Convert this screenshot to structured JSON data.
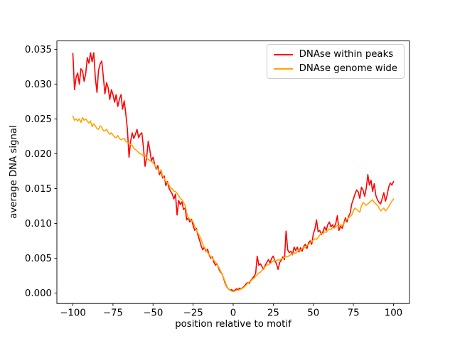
{
  "figure": {
    "background": "#ffffff",
    "xlabel": "position relative to motif",
    "ylabel": "average DNA signal"
  },
  "legend": {
    "position": "upper right",
    "items": [
      {
        "label": "DNAse within peaks",
        "color": "#ff0000"
      },
      {
        "label": "DNAse genome wide",
        "color": "#ffa500"
      }
    ]
  },
  "chart_data": {
    "type": "line",
    "title": "",
    "xlabel": "position relative to motif",
    "ylabel": "average DNA signal",
    "xlim": [
      -110,
      110
    ],
    "ylim": [
      -0.0015,
      0.0362
    ],
    "grid": false,
    "legend_position": "upper right",
    "xticks": {
      "values": [
        -100,
        -75,
        -50,
        -25,
        0,
        25,
        50,
        75,
        100
      ],
      "labels": [
        "−100",
        "−75",
        "−50",
        "−25",
        "0",
        "25",
        "50",
        "75",
        "100"
      ]
    },
    "yticks": {
      "values": [
        0.0,
        0.005,
        0.01,
        0.015,
        0.02,
        0.025,
        0.03,
        0.035
      ],
      "labels": [
        "0.000",
        "0.005",
        "0.010",
        "0.015",
        "0.020",
        "0.025",
        "0.030",
        "0.035"
      ]
    },
    "x_start": -100,
    "x_step": 1,
    "series": [
      {
        "name": "DNAse within peaks",
        "color": "#ff0000",
        "values": [
          0.0344,
          0.0292,
          0.031,
          0.0316,
          0.03,
          0.0322,
          0.0319,
          0.0304,
          0.0315,
          0.0338,
          0.033,
          0.0345,
          0.0332,
          0.0345,
          0.0309,
          0.0288,
          0.032,
          0.0329,
          0.0333,
          0.031,
          0.0286,
          0.0302,
          0.0295,
          0.0278,
          0.0292,
          0.0285,
          0.0274,
          0.0285,
          0.0268,
          0.0278,
          0.0285,
          0.0264,
          0.0276,
          0.0258,
          0.0235,
          0.0195,
          0.0218,
          0.023,
          0.0222,
          0.0228,
          0.0235,
          0.0223,
          0.0228,
          0.023,
          0.021,
          0.0182,
          0.0195,
          0.0218,
          0.0205,
          0.019,
          0.0195,
          0.0185,
          0.0178,
          0.0183,
          0.017,
          0.0175,
          0.0165,
          0.0168,
          0.0154,
          0.016,
          0.015,
          0.0146,
          0.0142,
          0.0135,
          0.0142,
          0.0112,
          0.0133,
          0.0127,
          0.0131,
          0.012,
          0.0122,
          0.0105,
          0.0108,
          0.0102,
          0.0106,
          0.0097,
          0.009,
          0.0093,
          0.0083,
          0.0076,
          0.0068,
          0.0062,
          0.0066,
          0.006,
          0.0063,
          0.0055,
          0.005,
          0.0052,
          0.0044,
          0.004,
          0.0042,
          0.0035,
          0.003,
          0.0028,
          0.0021,
          0.0014,
          0.0009,
          0.0006,
          0.0004,
          0.0005,
          0.0003,
          0.0004,
          0.0006,
          0.0005,
          0.0007,
          0.0006,
          0.0008,
          0.001,
          0.0013,
          0.0015,
          0.0014,
          0.0018,
          0.0021,
          0.0024,
          0.0028,
          0.0053,
          0.004,
          0.0042,
          0.0038,
          0.0034,
          0.004,
          0.0044,
          0.0048,
          0.0043,
          0.005,
          0.0053,
          0.0046,
          0.0042,
          0.0034,
          0.0044,
          0.0047,
          0.0052,
          0.0048,
          0.0089,
          0.0062,
          0.0058,
          0.006,
          0.0055,
          0.0066,
          0.0061,
          0.0066,
          0.0059,
          0.0065,
          0.006,
          0.0067,
          0.007,
          0.0064,
          0.0072,
          0.0075,
          0.007,
          0.0085,
          0.0092,
          0.0105,
          0.0088,
          0.009,
          0.0084,
          0.0088,
          0.0095,
          0.009,
          0.0098,
          0.0102,
          0.0095,
          0.0098,
          0.0094,
          0.01,
          0.0111,
          0.009,
          0.0096,
          0.0093,
          0.01,
          0.0108,
          0.0102,
          0.011,
          0.0115,
          0.0128,
          0.0135,
          0.0142,
          0.0148,
          0.0145,
          0.0136,
          0.0152,
          0.0148,
          0.0139,
          0.015,
          0.017,
          0.0155,
          0.0162,
          0.0146,
          0.0157,
          0.014,
          0.0134,
          0.013,
          0.0128,
          0.0136,
          0.0144,
          0.0132,
          0.014,
          0.0152,
          0.0158,
          0.0155,
          0.016
        ]
      },
      {
        "name": "DNAse genome wide",
        "color": "#ffa500",
        "values": [
          0.0254,
          0.0248,
          0.025,
          0.0247,
          0.025,
          0.0245,
          0.0252,
          0.0248,
          0.025,
          0.0247,
          0.0244,
          0.0247,
          0.0239,
          0.0243,
          0.024,
          0.0236,
          0.0235,
          0.024,
          0.0238,
          0.0233,
          0.0233,
          0.0235,
          0.0231,
          0.0228,
          0.023,
          0.0227,
          0.0224,
          0.0223,
          0.0226,
          0.0222,
          0.022,
          0.0221,
          0.0222,
          0.0218,
          0.0216,
          0.0215,
          0.0213,
          0.0212,
          0.0208,
          0.0206,
          0.0204,
          0.0202,
          0.02,
          0.0199,
          0.0197,
          0.0198,
          0.0194,
          0.0192,
          0.019,
          0.0189,
          0.0187,
          0.0184,
          0.018,
          0.0178,
          0.0174,
          0.0177,
          0.0168,
          0.0165,
          0.016,
          0.0158,
          0.0155,
          0.015,
          0.015,
          0.0146,
          0.0146,
          0.0143,
          0.014,
          0.0136,
          0.0134,
          0.013,
          0.0126,
          0.0115,
          0.0108,
          0.0106,
          0.0104,
          0.0102,
          0.0096,
          0.0091,
          0.0086,
          0.0082,
          0.0077,
          0.007,
          0.0066,
          0.0062,
          0.0058,
          0.0056,
          0.0052,
          0.005,
          0.0047,
          0.0044,
          0.0041,
          0.0037,
          0.0032,
          0.0027,
          0.0022,
          0.0016,
          0.001,
          0.0006,
          0.0004,
          0.0003,
          0.0002,
          0.0003,
          0.0004,
          0.0004,
          0.0005,
          0.0006,
          0.0007,
          0.0009,
          0.0011,
          0.0014,
          0.0016,
          0.0017,
          0.002,
          0.0021,
          0.0024,
          0.0026,
          0.0029,
          0.003,
          0.0033,
          0.0034,
          0.0038,
          0.004,
          0.0041,
          0.0042,
          0.0044,
          0.0046,
          0.0047,
          0.0046,
          0.0048,
          0.0047,
          0.0049,
          0.005,
          0.0051,
          0.0053,
          0.0052,
          0.0054,
          0.0055,
          0.0056,
          0.0058,
          0.0057,
          0.006,
          0.0062,
          0.0061,
          0.0064,
          0.0066,
          0.0065,
          0.0068,
          0.007,
          0.0072,
          0.0074,
          0.0076,
          0.0078,
          0.0077,
          0.008,
          0.0083,
          0.0086,
          0.0085,
          0.0088,
          0.0087,
          0.009,
          0.0092,
          0.0091,
          0.0094,
          0.0093,
          0.0095,
          0.0097,
          0.0096,
          0.0098,
          0.0097,
          0.0099,
          0.0104,
          0.0106,
          0.0108,
          0.011,
          0.0112,
          0.0118,
          0.0122,
          0.012,
          0.0118,
          0.0116,
          0.0125,
          0.013,
          0.0128,
          0.0126,
          0.0128,
          0.013,
          0.0132,
          0.0134,
          0.013,
          0.0128,
          0.0126,
          0.0122,
          0.0118,
          0.012,
          0.0122,
          0.0118,
          0.012,
          0.0124,
          0.0128,
          0.0132,
          0.0135
        ]
      }
    ]
  }
}
